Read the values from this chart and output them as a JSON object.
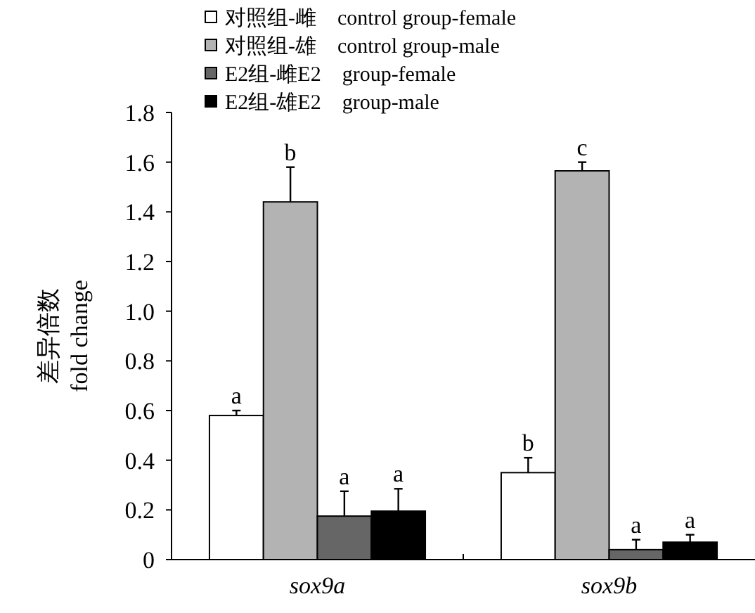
{
  "chart_data": {
    "type": "bar",
    "ylabel": "差异倍数\nfold change",
    "categories": [
      "sox9a",
      "sox9b"
    ],
    "ylim": [
      0,
      1.8
    ],
    "yticks": [
      {
        "value": 0,
        "label": "0"
      },
      {
        "value": 0.2,
        "label": "0.2"
      },
      {
        "value": 0.4,
        "label": "0.4"
      },
      {
        "value": 0.6,
        "label": "0.6"
      },
      {
        "value": 0.8,
        "label": "0.8"
      },
      {
        "value": 1,
        "label": "1.0"
      },
      {
        "value": 1.2,
        "label": "1.2"
      },
      {
        "value": 1.4,
        "label": "1.4"
      },
      {
        "value": 1.6,
        "label": "1.6"
      },
      {
        "value": 1.8,
        "label": "1.8"
      }
    ],
    "legend": "top",
    "grid": false,
    "series": [
      {
        "name": "对照组-雌    control group-female",
        "color": "#ffffff",
        "values": [
          0.58,
          0.35
        ],
        "errors": [
          0.02,
          0.06
        ],
        "value_labels": [
          "a",
          "b"
        ]
      },
      {
        "name": "对照组-雄    control group-male",
        "color": "#b3b3b3",
        "values": [
          1.44,
          1.565
        ],
        "errors": [
          0.14,
          0.035
        ],
        "value_labels": [
          "b",
          "c"
        ]
      },
      {
        "name": "E2组-雌E2    group-female",
        "color": "#666666",
        "values": [
          0.175,
          0.04
        ],
        "errors": [
          0.1,
          0.04
        ],
        "value_labels": [
          "a",
          "a"
        ]
      },
      {
        "name": "E2组-雄E2    group-male",
        "color": "#000000",
        "values": [
          0.195,
          0.07
        ],
        "errors": [
          0.09,
          0.03
        ],
        "value_labels": [
          "a",
          "a"
        ]
      }
    ]
  }
}
